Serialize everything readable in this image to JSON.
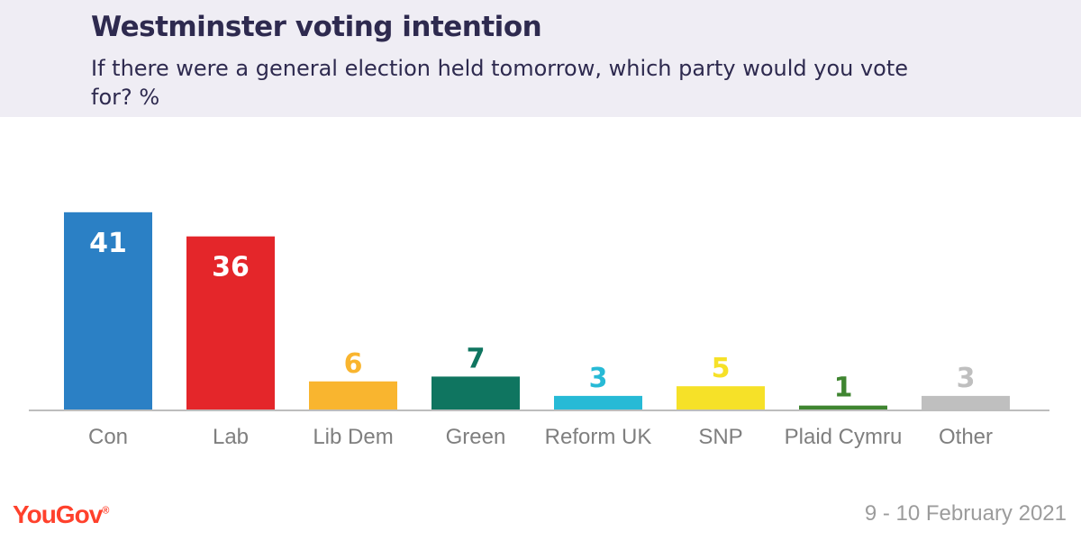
{
  "header": {
    "title": "Westminster voting intention",
    "subtitle": "If there were a general election held tomorrow, which party would you vote for? %"
  },
  "chart_data": {
    "type": "bar",
    "categories": [
      "Con",
      "Lab",
      "Lib Dem",
      "Green",
      "Reform UK",
      "SNP",
      "Plaid Cymru",
      "Other"
    ],
    "values": [
      41,
      36,
      6,
      7,
      3,
      5,
      1,
      3
    ],
    "colors": [
      "#2b80c5",
      "#e4262a",
      "#f9b52f",
      "#0f7560",
      "#27bad6",
      "#f6e128",
      "#3f8530",
      "#bfbfbf"
    ],
    "label_colors": [
      "#ffffff",
      "#ffffff",
      "#f9b52f",
      "#0f7560",
      "#27bad6",
      "#f6e128",
      "#3f8530",
      "#bfbfbf"
    ],
    "title": "Westminster voting intention",
    "xlabel": "",
    "ylabel": "",
    "ylim": [
      0,
      41
    ],
    "grid": false,
    "legend": "none"
  },
  "footer": {
    "brand": "YouGov",
    "brand_mark": "®",
    "date": "9 - 10 February 2021"
  }
}
